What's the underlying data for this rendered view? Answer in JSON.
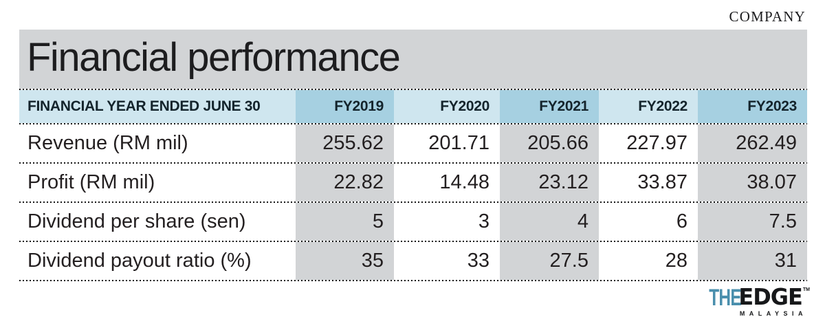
{
  "section_label": "COMPANY",
  "table": {
    "title": "Financial performance",
    "header_label": "FINANCIAL YEAR ENDED JUNE 30",
    "columns": [
      "FY2019",
      "FY2020",
      "FY2021",
      "FY2022",
      "FY2023"
    ],
    "rows": [
      {
        "label": "Revenue (RM mil)",
        "values": [
          "255.62",
          "201.71",
          "205.66",
          "227.97",
          "262.49"
        ]
      },
      {
        "label": "Profit (RM mil)",
        "values": [
          "22.82",
          "14.48",
          "23.12",
          "33.87",
          "38.07"
        ]
      },
      {
        "label": "Dividend per share (sen)",
        "values": [
          "5",
          "3",
          "4",
          "6",
          "7.5"
        ]
      },
      {
        "label": "Dividend payout ratio (%)",
        "values": [
          "35",
          "33",
          "27.5",
          "28",
          "31"
        ]
      }
    ]
  },
  "logo": {
    "the": "THE",
    "edge": "EDGE",
    "trademark": "TM",
    "country": "MALAYSIA"
  },
  "colors": {
    "band_gray": "#d2d4d6",
    "cell_gray": "#d2d4d6",
    "header_light_blue": "#cfe6ef",
    "header_dark_blue": "#a6d0e1",
    "logo_teal": "#4a8fad",
    "text": "#231f20"
  },
  "chart_data": {
    "type": "table",
    "title": "Financial performance",
    "x_header": "FINANCIAL YEAR ENDED JUNE 30",
    "categories": [
      "FY2019",
      "FY2020",
      "FY2021",
      "FY2022",
      "FY2023"
    ],
    "series": [
      {
        "name": "Revenue (RM mil)",
        "values": [
          255.62,
          201.71,
          205.66,
          227.97,
          262.49
        ]
      },
      {
        "name": "Profit (RM mil)",
        "values": [
          22.82,
          14.48,
          23.12,
          33.87,
          38.07
        ]
      },
      {
        "name": "Dividend per share (sen)",
        "values": [
          5,
          3,
          4,
          6,
          7.5
        ]
      },
      {
        "name": "Dividend payout ratio (%)",
        "values": [
          35,
          33,
          27.5,
          28,
          31
        ]
      }
    ]
  }
}
